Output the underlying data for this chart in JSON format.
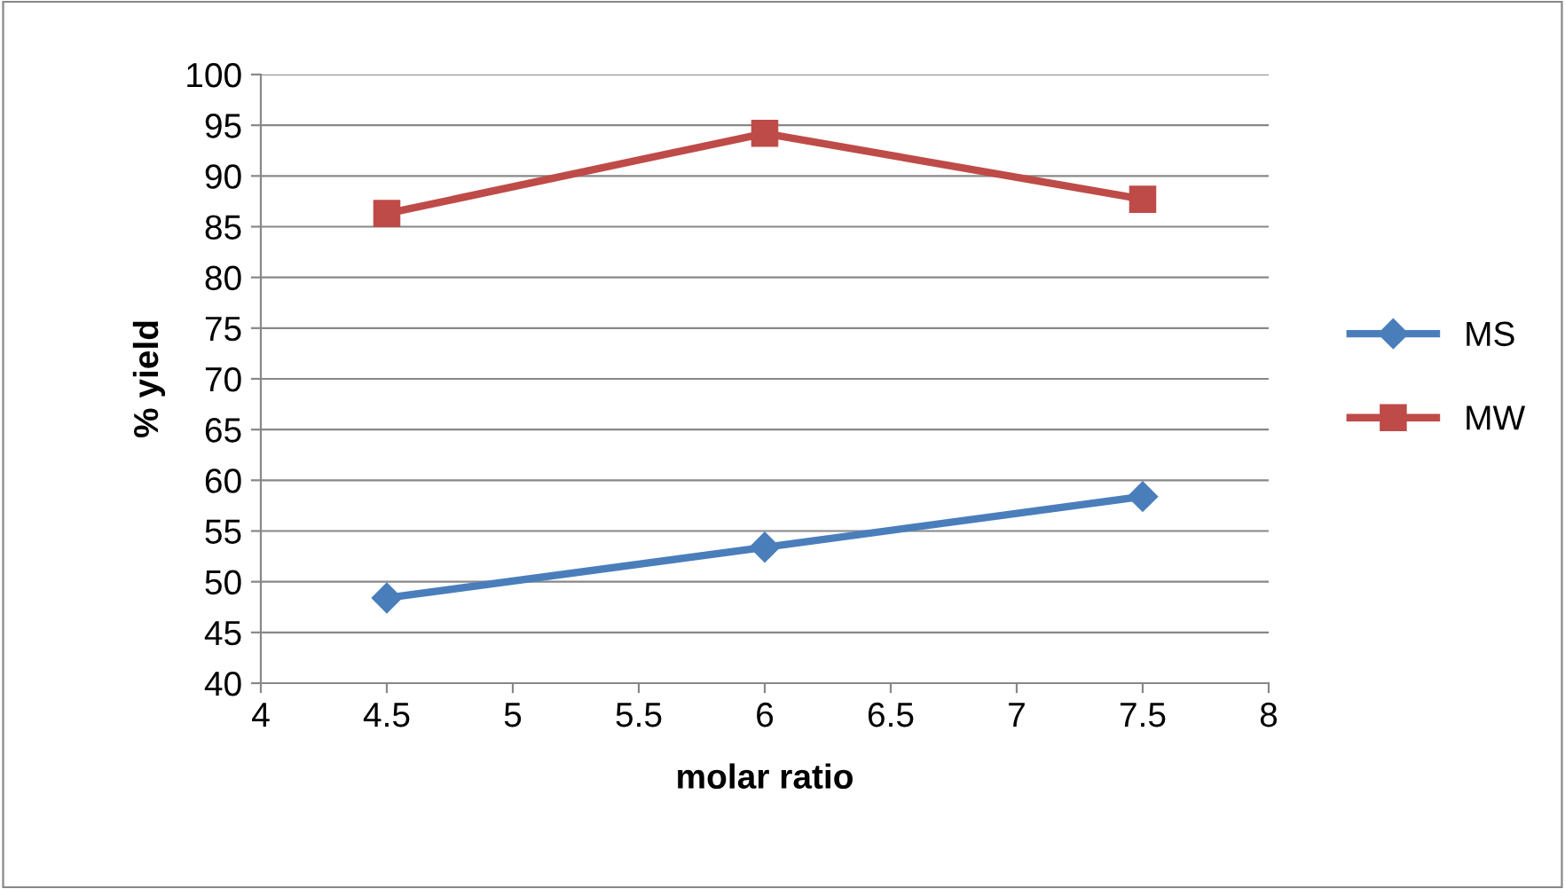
{
  "chart_data": {
    "type": "line",
    "xlabel": "molar ratio",
    "ylabel": "% yield",
    "x": [
      4.5,
      6,
      7.5
    ],
    "series": [
      {
        "name": "MS",
        "color": "#4a7ebb",
        "values": [
          48.4,
          53.4,
          58.4
        ],
        "marker": "diamond"
      },
      {
        "name": "MW",
        "color": "#be4b48",
        "values": [
          86.3,
          94.2,
          87.7
        ],
        "marker": "square"
      }
    ],
    "xlim": [
      4,
      8
    ],
    "xticks": [
      4,
      4.5,
      5,
      5.5,
      6,
      6.5,
      7,
      7.5,
      8
    ],
    "ylim": [
      40,
      100
    ],
    "yticks": [
      40,
      45,
      50,
      55,
      60,
      65,
      70,
      75,
      80,
      85,
      90,
      95,
      100
    ],
    "grid": "y",
    "legend": "right",
    "line_style": "solid"
  }
}
